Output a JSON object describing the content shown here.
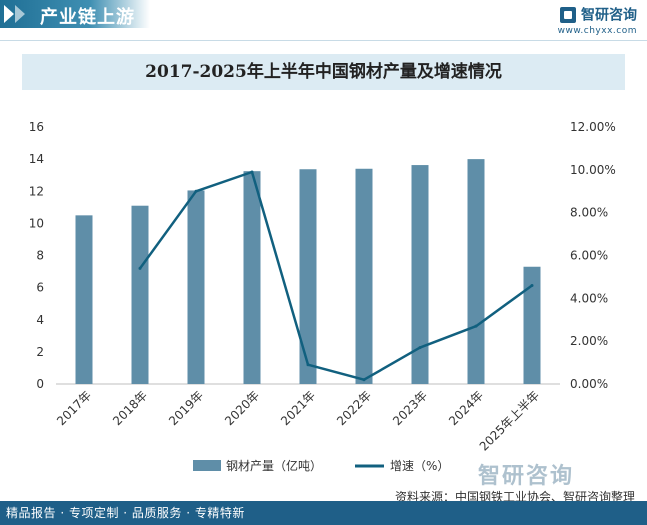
{
  "header": {
    "title": "产业链上游",
    "brand_name": "智研咨询",
    "brand_url": "www.chyxx.com"
  },
  "watermark_brand": "智研咨询",
  "footer": {
    "tags": "精品报告 · 专项定制 · 品质服务 · 专精特新",
    "source": "资料来源：中国钢铁工业协会、智研咨询整理"
  },
  "chart_data": {
    "type": "bar+line",
    "title": "2017-2025年上半年中国钢材产量及增速情况",
    "categories": [
      "2017年",
      "2018年",
      "2019年",
      "2020年",
      "2021年",
      "2022年",
      "2023年",
      "2024年",
      "2025年上半年"
    ],
    "series": [
      {
        "name": "钢材产量（亿吨）",
        "type": "bar",
        "axis": "left",
        "color": "#5f8ea8",
        "values": [
          10.5,
          11.1,
          12.05,
          13.25,
          13.37,
          13.4,
          13.63,
          14.0,
          7.3
        ]
      },
      {
        "name": "增速（%）",
        "type": "line",
        "axis": "right",
        "color": "#11607f",
        "values": [
          null,
          5.4,
          9.0,
          9.9,
          0.9,
          0.2,
          1.7,
          2.7,
          4.6
        ]
      }
    ],
    "y_left": {
      "min": 0,
      "max": 16,
      "ticks": [
        "0",
        "2",
        "4",
        "6",
        "8",
        "10",
        "12",
        "14",
        "16"
      ]
    },
    "y_right": {
      "min": 0,
      "max": 12,
      "ticks": [
        "0.00%",
        "2.00%",
        "4.00%",
        "6.00%",
        "8.00%",
        "10.00%",
        "12.00%"
      ]
    },
    "legend_position": "bottom-center",
    "grid": false
  }
}
